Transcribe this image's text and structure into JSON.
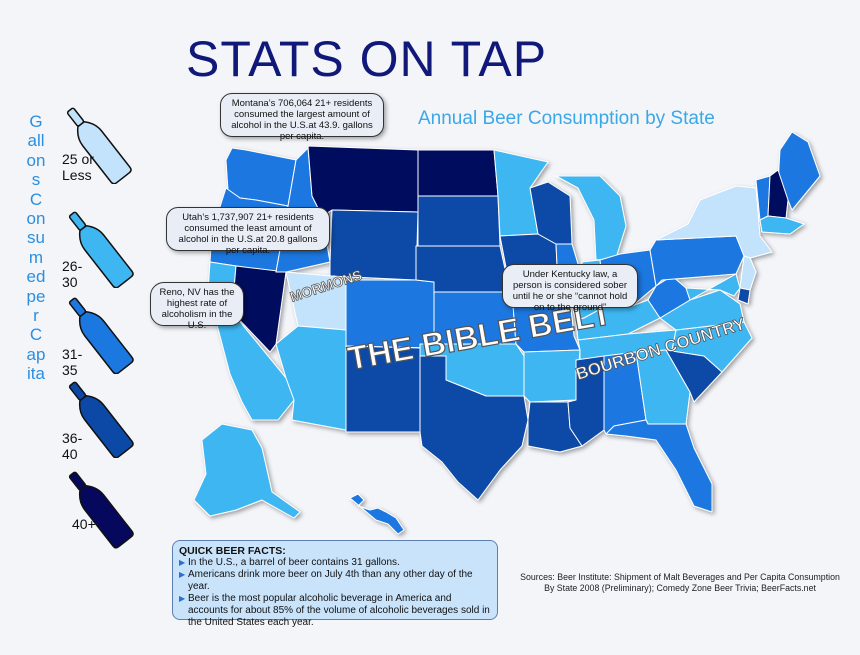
{
  "title": "STATS ON TAP",
  "subtitle": "Annual Beer Consumption by State",
  "legend": {
    "axis_label": "Gallons Consumed per Capita",
    "items": [
      {
        "label": "25 or Less",
        "color": "#c2e3fb"
      },
      {
        "label": "26-30",
        "color": "#3eb6f2"
      },
      {
        "label": "31-35",
        "color": "#1a78e0"
      },
      {
        "label": "36-40",
        "color": "#0c49a6"
      },
      {
        "label": "40+",
        "color": "#06085e"
      }
    ]
  },
  "bubbles": {
    "montana": "Montana’s 706,064 21+ residents consumed the largest amount of alcohol in the U.S.at 43.9. gallons per capita.",
    "utah": "Utah’s 1,737,907 21+ residents consumed the least amount of alcohol in the U.S.at 20.8 gallons per capita.",
    "reno": "Reno, NV has the highest rate of alcoholism in the U.S.",
    "kentucky": "Under Kentucky law, a person is considered sober until he or she “cannot hold on to the ground”"
  },
  "map_labels": {
    "mormons": "MORMONS",
    "bible_belt": "THE BIBLE BELT",
    "bourbon": "BOURBON COUNTRY"
  },
  "facts": {
    "title": "QUICK BEER FACTS:",
    "items": [
      "In the U.S., a barrel of beer contains 31 gallons.",
      "Americans drink more beer on July 4th than any other day of the year.",
      "Beer is the most popular alcoholic beverage in America and accounts for about 85% of the volume of alcoholic beverages sold in the United States each year."
    ]
  },
  "sources": "Sources: Beer Institute: Shipment of Malt Beverages and Per Capita Consumption By State 2008 (Preliminary); Comedy Zone Beer Trivia; BeerFacts.net",
  "chart_data": {
    "type": "choropleth",
    "title": "Annual Beer Consumption by State",
    "legend_title": "Gallons Consumed per Capita",
    "bins": [
      "25 or Less",
      "26-30",
      "31-35",
      "36-40",
      "40+"
    ],
    "states": {
      "WA": "31-35",
      "OR": "31-35",
      "CA": "26-30",
      "NV": "40+",
      "ID": "31-35",
      "MT": "40+",
      "WY": "36-40",
      "UT": "25 or Less",
      "AZ": "26-30",
      "CO": "31-35",
      "NM": "36-40",
      "ND": "40+",
      "SD": "36-40",
      "NE": "36-40",
      "KS": "31-35",
      "OK": "26-30",
      "TX": "36-40",
      "MN": "26-30",
      "IA": "36-40",
      "MO": "31-35",
      "AR": "26-30",
      "LA": "36-40",
      "WI": "36-40",
      "IL": "31-35",
      "MI": "26-30",
      "IN": "26-30",
      "OH": "31-35",
      "KY": "26-30",
      "TN": "26-30",
      "MS": "36-40",
      "AL": "31-35",
      "GA": "26-30",
      "FL": "31-35",
      "SC": "36-40",
      "NC": "26-30",
      "VA": "26-30",
      "WV": "31-35",
      "PA": "31-35",
      "NY": "25 or Less",
      "ME": "31-35",
      "VT": "31-35",
      "NH": "40+",
      "MA": "26-30",
      "NJ": "25 or Less",
      "MD": "26-30",
      "DE": "36-40",
      "AK": "26-30",
      "HI": "31-35"
    }
  }
}
